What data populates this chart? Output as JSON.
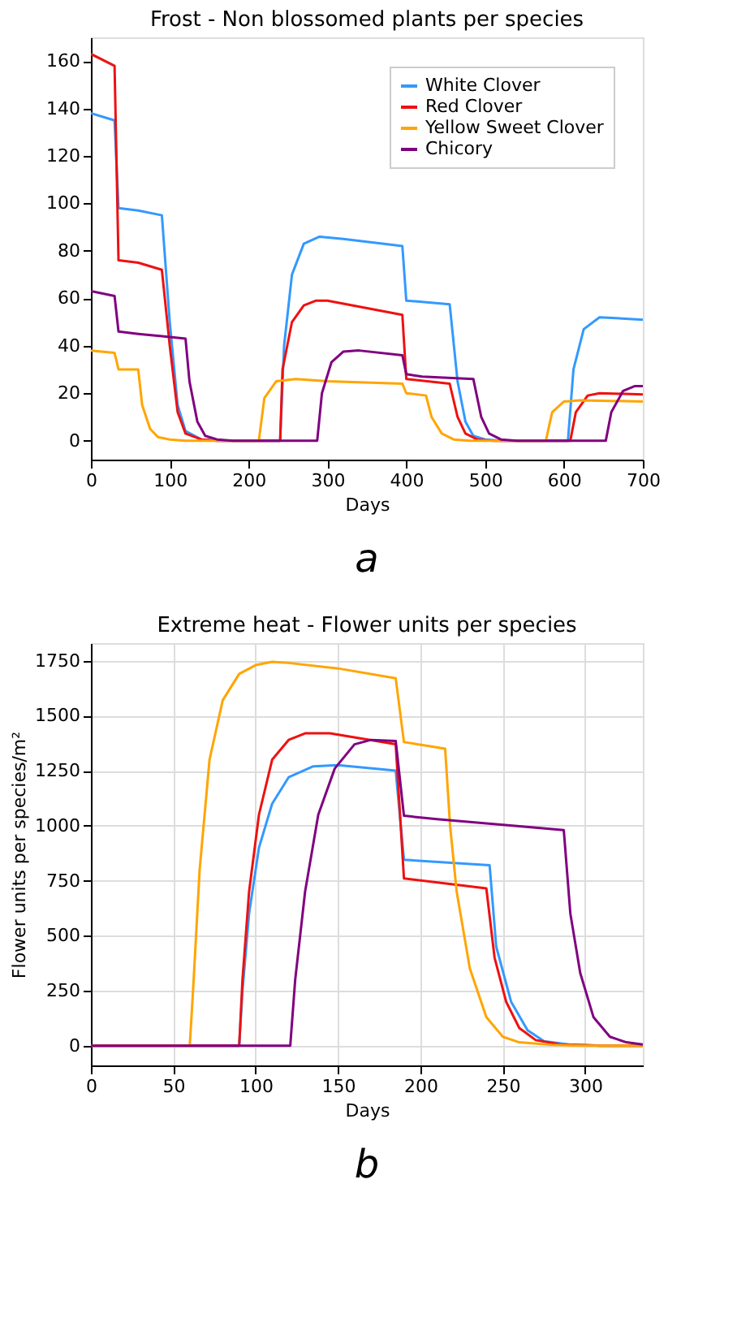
{
  "chart_data": [
    {
      "type": "line",
      "title": "Frost - Non blossomed plants per species",
      "xlabel": "Days",
      "xlim": [
        0,
        700
      ],
      "xticks": [
        0,
        100,
        200,
        300,
        400,
        500,
        600,
        700
      ],
      "ylim": [
        -8,
        170
      ],
      "yticks": [
        0,
        20,
        40,
        60,
        80,
        100,
        120,
        140,
        160
      ],
      "grid": false,
      "legend": "top right",
      "line_style": "solid",
      "marker": "none",
      "annotations": [
        "a"
      ],
      "series": [
        {
          "name": "White Clover",
          "color": "#3399ff",
          "x": [
            0,
            30,
            35,
            60,
            90,
            100,
            110,
            120,
            140,
            160,
            240,
            245,
            255,
            270,
            290,
            320,
            395,
            400,
            420,
            455,
            465,
            475,
            485,
            500,
            520,
            605,
            612,
            625,
            645,
            700
          ],
          "values": [
            138,
            135,
            98,
            97,
            95,
            50,
            15,
            4,
            0.5,
            0,
            0,
            40,
            70,
            83,
            86,
            85,
            82,
            59,
            58.5,
            57.5,
            25,
            8,
            2,
            0.5,
            0,
            0,
            30,
            47,
            52,
            51
          ]
        },
        {
          "name": "Red Clover",
          "color": "#ee1111",
          "x": [
            0,
            30,
            35,
            60,
            90,
            100,
            110,
            120,
            140,
            160,
            240,
            243,
            255,
            270,
            285,
            300,
            395,
            400,
            455,
            465,
            475,
            490,
            510,
            608,
            615,
            630,
            645,
            700
          ],
          "values": [
            163,
            158,
            76,
            75,
            72,
            40,
            12,
            3,
            0.5,
            0,
            0,
            30,
            50,
            57,
            59,
            59,
            53,
            26,
            24,
            10,
            3,
            0.5,
            0,
            0,
            12,
            19,
            20,
            19.5
          ]
        },
        {
          "name": "Yellow Sweet Clover",
          "color": "#ffa500",
          "x": [
            0,
            30,
            35,
            60,
            65,
            75,
            85,
            100,
            120,
            213,
            220,
            235,
            260,
            300,
            395,
            400,
            425,
            432,
            445,
            460,
            480,
            577,
            585,
            600,
            620,
            700
          ],
          "values": [
            38,
            37,
            30,
            30,
            15,
            5,
            1.5,
            0.5,
            0,
            0,
            18,
            25,
            26,
            25,
            24,
            20,
            19,
            10,
            3,
            0.5,
            0,
            0,
            12,
            16.5,
            17,
            16.5
          ]
        },
        {
          "name": "Chicory",
          "color": "#800080",
          "x": [
            0,
            30,
            35,
            60,
            90,
            120,
            125,
            135,
            145,
            160,
            180,
            287,
            293,
            305,
            320,
            340,
            395,
            400,
            420,
            485,
            495,
            505,
            520,
            540,
            653,
            660,
            675,
            690,
            700
          ],
          "values": [
            63,
            61,
            46,
            45,
            44,
            43,
            25,
            8,
            2,
            0.5,
            0,
            0,
            20,
            33,
            37.5,
            38,
            36,
            28,
            27,
            26,
            10,
            3,
            0.5,
            0,
            0,
            12,
            21,
            23,
            23
          ]
        }
      ]
    },
    {
      "type": "line",
      "title": "Extreme heat - Flower units per species",
      "xlabel": "Days",
      "ylabel": "Flower units per species/m²",
      "xlim": [
        0,
        335
      ],
      "xticks": [
        0,
        50,
        100,
        150,
        200,
        250,
        300
      ],
      "ylim": [
        -90,
        1830
      ],
      "yticks": [
        0,
        250,
        500,
        750,
        1000,
        1250,
        1500,
        1750
      ],
      "grid": true,
      "legend": "top right",
      "line_style": "solid",
      "marker": "none",
      "annotations": [
        "b"
      ],
      "series": [
        {
          "name": "White Clover",
          "color": "#3399ff",
          "x": [
            0,
            90,
            92,
            96,
            102,
            110,
            120,
            135,
            150,
            185,
            190,
            242,
            246,
            255,
            265,
            275,
            290,
            310,
            335
          ],
          "values": [
            0,
            0,
            250,
            600,
            900,
            1100,
            1220,
            1270,
            1275,
            1250,
            845,
            820,
            450,
            200,
            70,
            20,
            5,
            0,
            0
          ]
        },
        {
          "name": "Red Clover",
          "color": "#ee1111",
          "x": [
            0,
            90,
            92,
            96,
            102,
            110,
            120,
            130,
            145,
            185,
            190,
            240,
            245,
            252,
            260,
            270,
            285,
            310,
            335
          ],
          "values": [
            0,
            0,
            300,
            700,
            1050,
            1300,
            1390,
            1420,
            1420,
            1370,
            760,
            715,
            400,
            200,
            80,
            25,
            5,
            0,
            0
          ]
        },
        {
          "name": "Yellow Sweet Clover",
          "color": "#ffa500",
          "x": [
            0,
            60,
            62,
            66,
            72,
            80,
            90,
            100,
            110,
            120,
            150,
            185,
            190,
            215,
            218,
            222,
            230,
            240,
            250,
            260,
            280,
            300,
            335
          ],
          "values": [
            0,
            0,
            250,
            800,
            1300,
            1570,
            1690,
            1730,
            1745,
            1740,
            1715,
            1670,
            1380,
            1350,
            1000,
            700,
            350,
            130,
            40,
            15,
            3,
            0,
            0
          ]
        },
        {
          "name": "Chicory",
          "color": "#800080",
          "x": [
            0,
            121,
            124,
            130,
            138,
            148,
            160,
            170,
            185,
            190,
            210,
            287,
            291,
            297,
            305,
            315,
            325,
            335
          ],
          "values": [
            0,
            0,
            300,
            700,
            1050,
            1260,
            1370,
            1390,
            1385,
            1045,
            1030,
            980,
            600,
            330,
            130,
            40,
            15,
            5
          ]
        }
      ]
    }
  ]
}
